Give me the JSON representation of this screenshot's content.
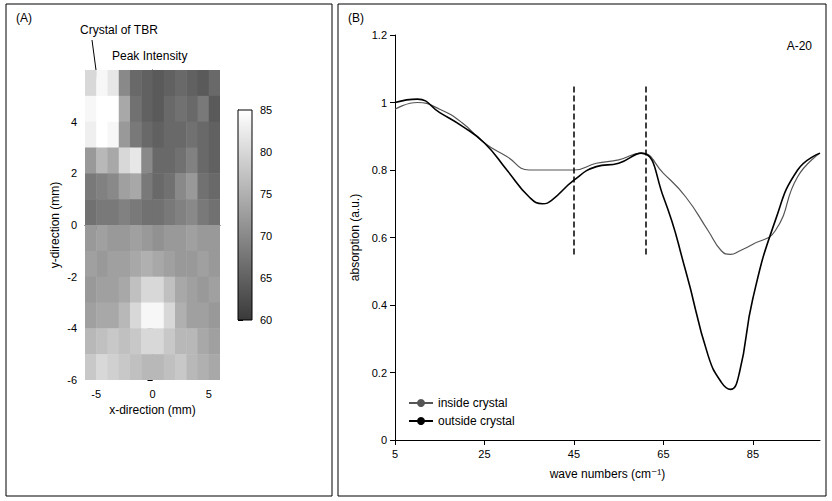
{
  "chart_data": [
    {
      "type": "heatmap",
      "panel": "(A)",
      "title": "Peak Intensity",
      "annotations": [
        "Crystal of TBR"
      ],
      "xlabel": "x-direction (mm)",
      "ylabel": "y-direction (mm)",
      "xlim": [
        -6,
        6
      ],
      "xticks": [
        -5,
        0,
        5
      ],
      "ylim": [
        -6,
        6
      ],
      "yticks": [
        -6,
        -4,
        -2,
        0,
        2,
        4
      ],
      "grid": false,
      "cells": {
        "x": [
          -5.5,
          -4.5,
          -3.5,
          -2.5,
          -1.5,
          -0.5,
          0.5,
          1.5,
          2.5,
          3.5,
          4.5,
          5.5
        ],
        "y": [
          5.5,
          4.5,
          3.5,
          2.5,
          1.5,
          0.5,
          -0.5,
          -1.5,
          -2.5,
          -3.5,
          -4.5,
          -5.5
        ],
        "values": [
          [
            80,
            84,
            82,
            70,
            66,
            65,
            64,
            65,
            66,
            65,
            64,
            66
          ],
          [
            84,
            86,
            85,
            74,
            67,
            65,
            64,
            66,
            67,
            66,
            68,
            64
          ],
          [
            83,
            86,
            84,
            72,
            68,
            66,
            65,
            66,
            66,
            67,
            66,
            65
          ],
          [
            72,
            76,
            74,
            80,
            82,
            70,
            66,
            66,
            67,
            69,
            66,
            65
          ],
          [
            68,
            69,
            70,
            73,
            74,
            68,
            66,
            67,
            70,
            72,
            67,
            66
          ],
          [
            67,
            68,
            68,
            69,
            68,
            67,
            67,
            68,
            69,
            70,
            68,
            67
          ],
          [
            72,
            73,
            72,
            72,
            73,
            72,
            71,
            72,
            72,
            73,
            72,
            72
          ],
          [
            73,
            72,
            73,
            73,
            74,
            75,
            74,
            73,
            72,
            72,
            73,
            72
          ],
          [
            72,
            73,
            73,
            74,
            77,
            80,
            80,
            77,
            74,
            73,
            72,
            73
          ],
          [
            73,
            74,
            74,
            76,
            80,
            84,
            84,
            80,
            75,
            73,
            73,
            72
          ],
          [
            76,
            77,
            78,
            77,
            78,
            80,
            80,
            78,
            76,
            76,
            74,
            73
          ],
          [
            78,
            80,
            79,
            78,
            77,
            76,
            76,
            77,
            78,
            76,
            75,
            74
          ]
        ]
      },
      "colorbar": {
        "range": [
          60,
          85
        ],
        "ticks": [
          60,
          65,
          70,
          75,
          80,
          85
        ]
      }
    },
    {
      "type": "line",
      "panel": "(B)",
      "annotations": [
        "A-20"
      ],
      "xlabel": "wave numbers (cm⁻¹)",
      "ylabel": "absorption (a.u.)",
      "xlim": [
        5,
        100
      ],
      "xticks": [
        5,
        25,
        45,
        65,
        85
      ],
      "ylim": [
        0,
        1.2
      ],
      "yticks": [
        0,
        0.2,
        0.4,
        0.6,
        0.8,
        1,
        1.2
      ],
      "grid": false,
      "legend": "lower left",
      "x": [
        5,
        10,
        15,
        20,
        25,
        30,
        35,
        38,
        40,
        45,
        50,
        55,
        60,
        65,
        70,
        75,
        78,
        80,
        82,
        85,
        90,
        95,
        100
      ],
      "series": [
        {
          "name": "inside crystal",
          "color": "#555555",
          "values": [
            0.98,
            1.0,
            0.98,
            0.94,
            0.88,
            0.84,
            0.8,
            0.8,
            0.8,
            0.8,
            0.82,
            0.83,
            0.85,
            0.79,
            0.72,
            0.62,
            0.56,
            0.55,
            0.56,
            0.58,
            0.62,
            0.78,
            0.85
          ]
        },
        {
          "name": "outside crystal",
          "color": "#000000",
          "values": [
            1.0,
            1.01,
            0.97,
            0.93,
            0.88,
            0.8,
            0.72,
            0.7,
            0.71,
            0.77,
            0.81,
            0.82,
            0.85,
            0.72,
            0.5,
            0.25,
            0.17,
            0.15,
            0.2,
            0.42,
            0.65,
            0.8,
            0.85
          ]
        }
      ],
      "vlines": {
        "x": [
          45,
          61
        ],
        "y": [
          0.55,
          1.05
        ]
      }
    }
  ]
}
